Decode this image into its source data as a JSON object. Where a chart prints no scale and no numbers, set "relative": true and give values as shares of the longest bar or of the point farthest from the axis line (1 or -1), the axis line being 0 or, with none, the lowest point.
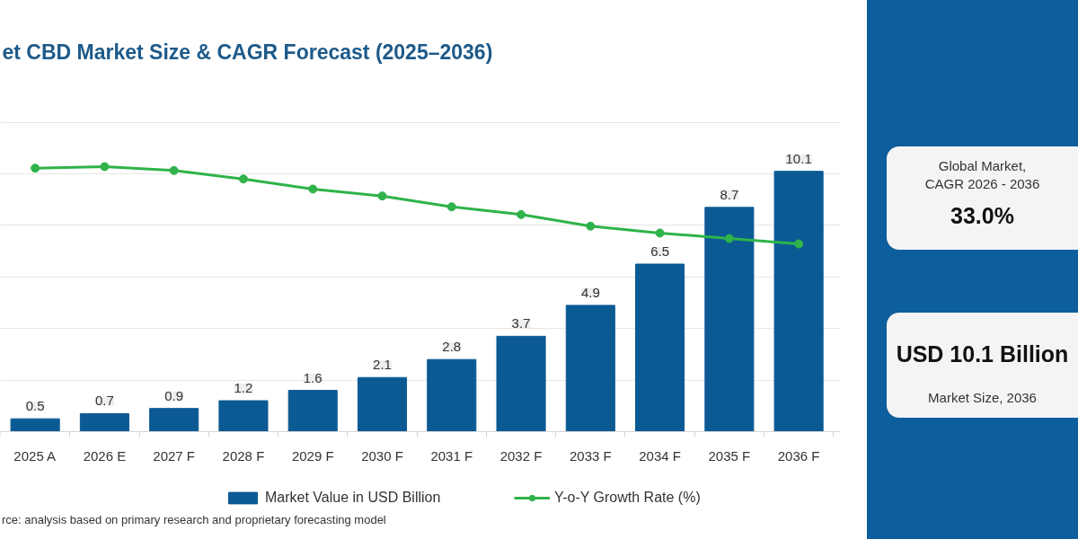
{
  "chart_data": [
    {
      "type": "bar",
      "title": "et CBD Market Size & CAGR Forecast (2025–2036)",
      "categories": [
        "2025 A",
        "2026 E",
        "2027 F",
        "2028 F",
        "2029 F",
        "2030 F",
        "2031 F",
        "2032 F",
        "2033 F",
        "2034 F",
        "2035 F",
        "2036 F"
      ],
      "series": [
        {
          "name": "Market Value in USD Billion",
          "color": "#0b5a94",
          "values": [
            0.5,
            0.7,
            0.9,
            1.2,
            1.6,
            2.1,
            2.8,
            3.7,
            4.9,
            6.5,
            8.7,
            10.1
          ],
          "value_labels": [
            "0.5",
            "0.7",
            "0.9",
            "1.2",
            "1.6",
            "2.1",
            "2.8",
            "3.7",
            "4.9",
            "6.5",
            "8.7",
            "10.1"
          ]
        }
      ],
      "tick_labels": "x",
      "grid": "y",
      "legend": "bottom",
      "annotations": [
        "Global Market,",
        "CAGR 2026 - 2036",
        "33.0%",
        "USD 10.1 Billion",
        "Market Size, 2036",
        "rce: analysis based on primary research and proprietary forecasting model"
      ]
    },
    {
      "type": "line",
      "categories": [
        null,
        null,
        null,
        null,
        null,
        null,
        null,
        null,
        null,
        null,
        null,
        null
      ],
      "series": [
        {
          "name": "Y-o-Y Growth Rate (%)",
          "color": "#2fb34a",
          "values": [
            0.98,
            1,
            0.95,
            0.84,
            0.71,
            0.62,
            0.48,
            0.38,
            0.23,
            0.14,
            0.07,
            0
          ]
        }
      ],
      "relative": true,
      "tick_labels": false,
      "legend": "bottom",
      "marker": "circle",
      "line_style": "solid"
    }
  ]
}
